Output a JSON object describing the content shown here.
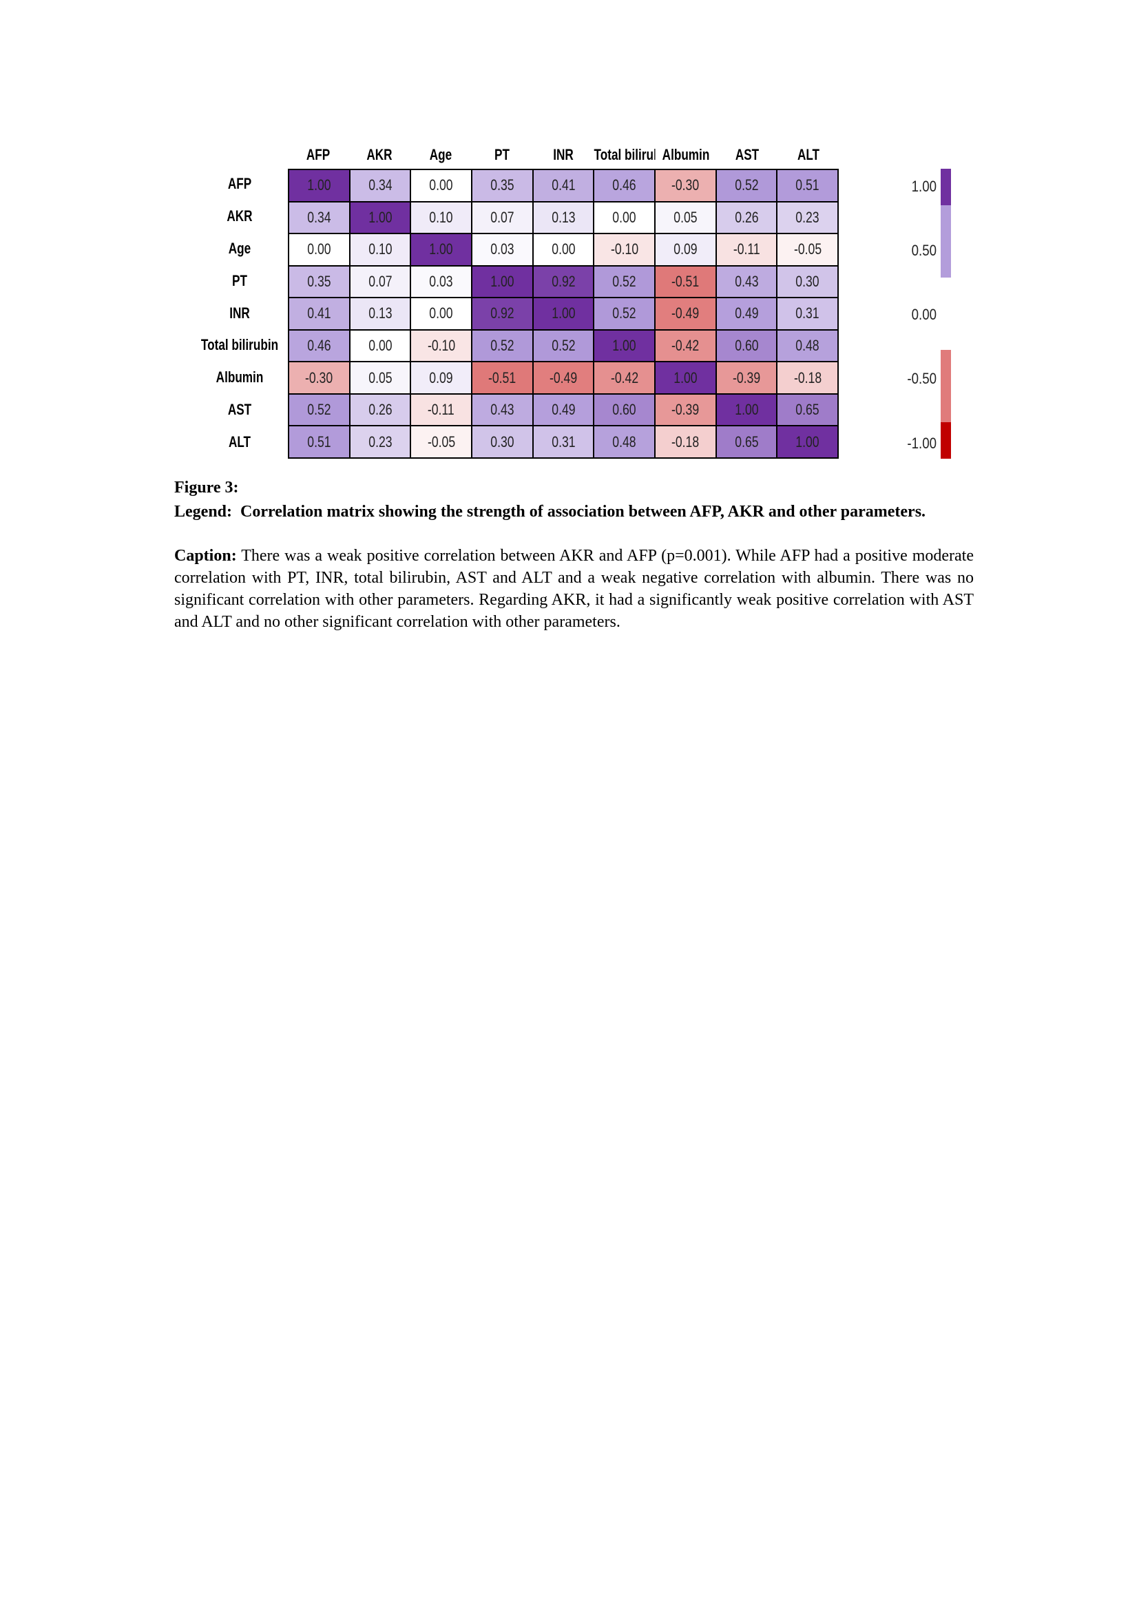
{
  "chart_data": {
    "type": "heatmap",
    "title": "Correlation matrix",
    "columns": [
      "AFP",
      "AKR",
      "Age",
      "PT",
      "INR",
      "Total bilirubin",
      "Albumin",
      "AST",
      "ALT"
    ],
    "rows": [
      "AFP",
      "AKR",
      "Age",
      "PT",
      "INR",
      "Total bilirubin",
      "Albumin",
      "AST",
      "ALT"
    ],
    "values": [
      [
        1.0,
        0.34,
        0.0,
        0.35,
        0.41,
        0.46,
        -0.3,
        0.52,
        0.51
      ],
      [
        0.34,
        1.0,
        0.1,
        0.07,
        0.13,
        0.0,
        0.05,
        0.26,
        0.23
      ],
      [
        0.0,
        0.1,
        1.0,
        0.03,
        0.0,
        -0.1,
        0.09,
        -0.11,
        -0.05
      ],
      [
        0.35,
        0.07,
        0.03,
        1.0,
        0.92,
        0.52,
        -0.51,
        0.43,
        0.3
      ],
      [
        0.41,
        0.13,
        0.0,
        0.92,
        1.0,
        0.52,
        -0.49,
        0.49,
        0.31
      ],
      [
        0.46,
        0.0,
        -0.1,
        0.52,
        0.52,
        1.0,
        -0.42,
        0.6,
        0.48
      ],
      [
        -0.3,
        0.05,
        0.09,
        -0.51,
        -0.49,
        -0.42,
        1.0,
        -0.39,
        -0.18
      ],
      [
        0.52,
        0.26,
        -0.11,
        0.43,
        0.49,
        0.6,
        -0.39,
        1.0,
        0.65
      ],
      [
        0.51,
        0.23,
        -0.05,
        0.3,
        0.31,
        0.48,
        -0.18,
        0.65,
        1.0
      ]
    ],
    "color_scale": {
      "max": "#7030a0",
      "mid_pos": "#b39ddb",
      "zero": "#ffffff",
      "mid_neg": "#e07b7b",
      "min": "#c00000"
    },
    "legend": {
      "ticks": [
        "1.00",
        "0.50",
        "0.00",
        "-0.50",
        "-1.00"
      ],
      "segments": [
        {
          "from": 0.75,
          "to": 1.0,
          "color": "#7030a0"
        },
        {
          "from": 0.25,
          "to": 0.75,
          "color": "#b39ddb"
        },
        {
          "from": -0.75,
          "to": -0.25,
          "color": "#e07b7b"
        },
        {
          "from": -1.0,
          "to": -0.75,
          "color": "#c00000"
        }
      ],
      "placement": "right"
    }
  },
  "figure": {
    "label": "Figure 3:",
    "legend_label": "Legend:",
    "legend_text": "Correlation matrix showing the strength of association between AFP, AKR and other parameters.",
    "caption_label": "Caption:",
    "caption_text": "There was a weak positive correlation between AKR and AFP (p=0.001). While AFP had a positive moderate correlation with PT, INR, total bilirubin, AST and ALT and a weak negative correlation with albumin. There was no significant correlation with other parameters. Regarding AKR, it had a significantly weak positive correlation with AST and ALT and no other significant correlation with other parameters."
  }
}
